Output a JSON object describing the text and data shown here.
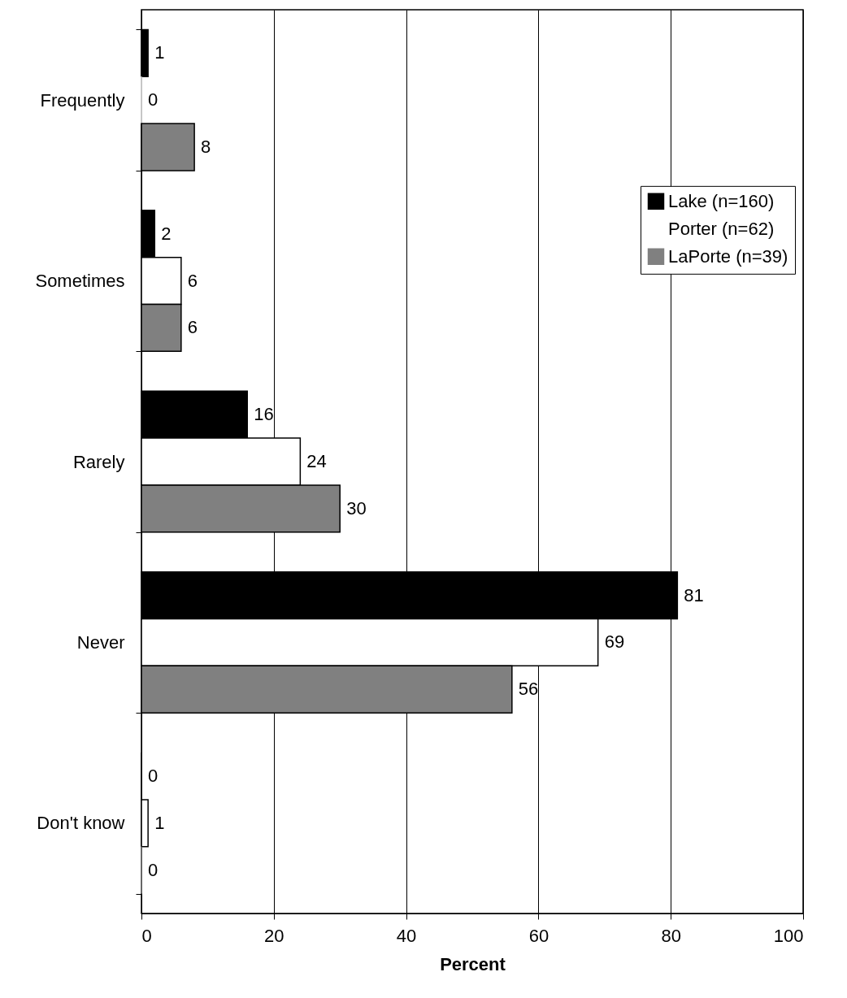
{
  "chart_data": {
    "type": "bar",
    "orientation": "horizontal",
    "xlabel": "Percent",
    "categories": [
      "Frequently",
      "Sometimes",
      "Rarely",
      "Never",
      "Don't know"
    ],
    "series": [
      {
        "name": "Lake (n=160)",
        "color": "#000000",
        "values": [
          1,
          2,
          16,
          81,
          0
        ]
      },
      {
        "name": "Porter (n=62)",
        "color": "#ffffff",
        "values": [
          0,
          6,
          24,
          69,
          1
        ]
      },
      {
        "name": "LaPorte (n=39)",
        "color": "#808080",
        "values": [
          8,
          6,
          30,
          56,
          0
        ]
      }
    ],
    "xlim": [
      0,
      100
    ],
    "xticks": [
      0,
      20,
      40,
      60,
      80,
      100
    ],
    "grid": "x",
    "legend": "right",
    "data_labels": true
  }
}
